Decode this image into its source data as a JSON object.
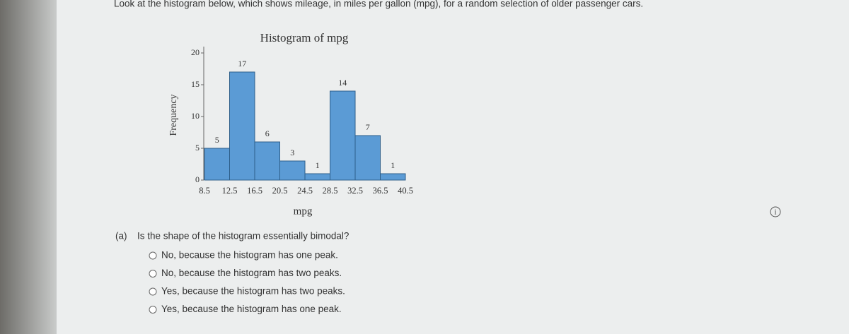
{
  "prompt": "Look at the histogram below, which shows mileage, in miles per gallon (mpg), for a random selection of older passenger cars.",
  "chart_data": {
    "type": "histogram",
    "title": "Histogram of mpg",
    "xlabel": "mpg",
    "ylabel": "Frequency",
    "bins": [
      8.5,
      12.5,
      16.5,
      20.5,
      24.5,
      28.5,
      32.5,
      36.5,
      40.5
    ],
    "values": [
      5,
      17,
      6,
      3,
      1,
      14,
      7,
      1
    ],
    "color": "#5b9bd5",
    "ylim": [
      0,
      21
    ],
    "yticks": [
      0,
      5,
      10,
      15,
      20
    ]
  },
  "question": {
    "label": "(a)",
    "text": "Is the shape of the histogram essentially bimodal?",
    "options": [
      "No, because the histogram has one peak.",
      "No, because the histogram has two peaks.",
      "Yes, because the histogram has two peaks.",
      "Yes, because the histogram has one peak."
    ]
  }
}
